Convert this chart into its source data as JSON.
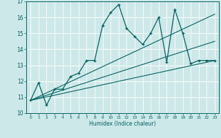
{
  "xlabel": "Humidex (Indice chaleur)",
  "bg_color": "#cce8e8",
  "line_color": "#006060",
  "grid_color": "#ffffff",
  "xlim": [
    -0.5,
    23.5
  ],
  "ylim": [
    10,
    17
  ],
  "xticks": [
    0,
    1,
    2,
    3,
    4,
    5,
    6,
    7,
    8,
    9,
    10,
    11,
    12,
    13,
    14,
    15,
    16,
    17,
    18,
    19,
    20,
    21,
    22,
    23
  ],
  "yticks": [
    10,
    11,
    12,
    13,
    14,
    15,
    16,
    17
  ],
  "line1_x": [
    0,
    1,
    2,
    3,
    4,
    5,
    6,
    7,
    8,
    9,
    10,
    11,
    12,
    13,
    14,
    15,
    16,
    17,
    18,
    19,
    20,
    21,
    22,
    23
  ],
  "line1_y": [
    10.8,
    11.9,
    10.5,
    11.5,
    11.5,
    12.3,
    12.5,
    13.3,
    13.3,
    15.5,
    16.3,
    16.8,
    15.3,
    14.8,
    14.3,
    15.0,
    16.0,
    13.2,
    16.5,
    15.0,
    13.1,
    13.3,
    13.3,
    13.3
  ],
  "line2_x": [
    0,
    23
  ],
  "line2_y": [
    10.8,
    13.3
  ],
  "line3_x": [
    0,
    23
  ],
  "line3_y": [
    10.8,
    14.5
  ],
  "line4_x": [
    0,
    23
  ],
  "line4_y": [
    10.8,
    16.2
  ]
}
